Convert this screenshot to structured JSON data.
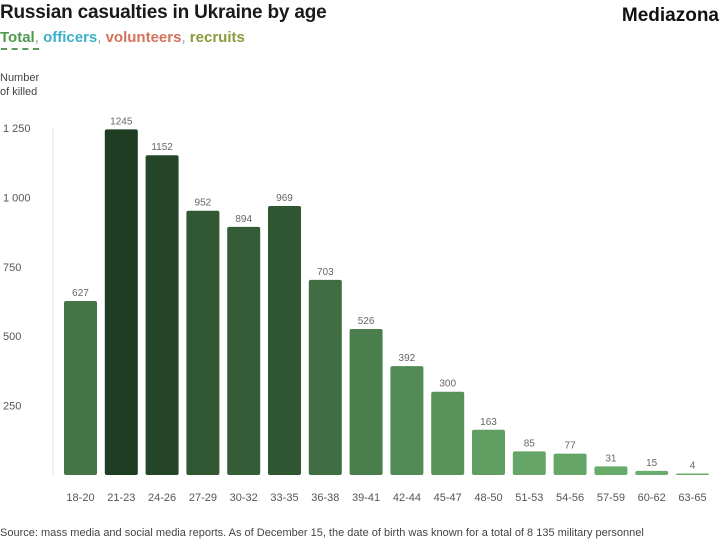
{
  "header": {
    "title": "Russian casualties in Ukraine by age",
    "brand": "Mediazona"
  },
  "filters": [
    {
      "label": "Total",
      "color": "#4f9a4c",
      "active": true
    },
    {
      "label": "officers",
      "color": "#3ab0c9",
      "active": false
    },
    {
      "label": "volunteers",
      "color": "#d4735a",
      "active": false
    },
    {
      "label": "recruits",
      "color": "#8c9a3e",
      "active": false
    }
  ],
  "chart_data": {
    "type": "bar",
    "ylabel": "Number of killed",
    "ylabel_lines": [
      "Number",
      "of killed"
    ],
    "ylim": [
      0,
      1300
    ],
    "yticks": [
      250,
      500,
      750,
      1000,
      1250
    ],
    "ytick_labels": [
      "250",
      "500",
      "750",
      "1 000",
      "1 250"
    ],
    "categories": [
      "18-20",
      "21-23",
      "24-26",
      "27-29",
      "30-32",
      "33-35",
      "36-38",
      "39-41",
      "42-44",
      "45-47",
      "48-50",
      "51-53",
      "54-56",
      "57-59",
      "60-62",
      "63-65"
    ],
    "values": [
      627,
      1245,
      1152,
      952,
      894,
      969,
      703,
      526,
      392,
      300,
      163,
      85,
      77,
      31,
      15,
      4
    ],
    "color_dark": "#1f3d22",
    "color_light": "#6aad6c",
    "grid": false
  },
  "footer": {
    "source": "Source: mass media and social media reports. As of December 15, the date of birth was known for a total of 8 135 military personnel"
  }
}
